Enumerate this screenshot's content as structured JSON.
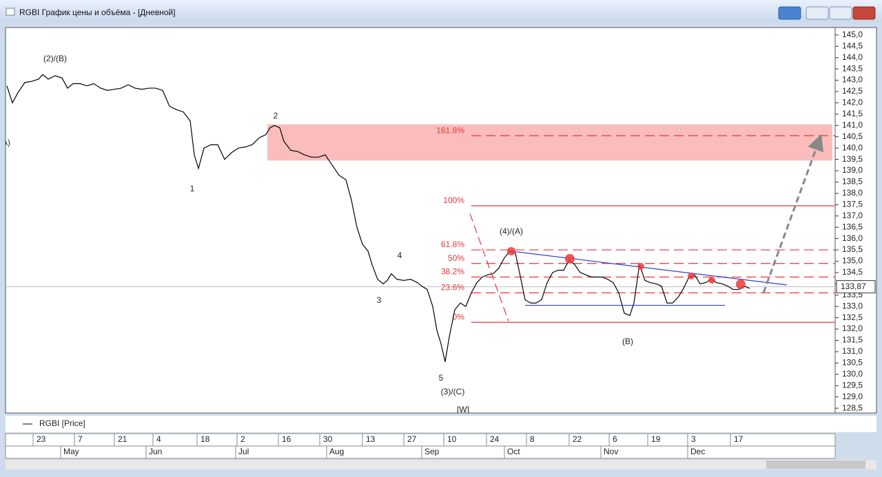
{
  "window": {
    "title": "RGBI График цены и объёма - [Дневной]"
  },
  "chart_data": {
    "type": "line",
    "legend": "RGBI [Price]",
    "series": [
      {
        "name": "RGBI",
        "color": "#000000",
        "x": [
          1,
          5,
          9,
          14,
          19,
          24,
          27,
          31,
          36,
          41,
          45,
          49,
          54,
          59,
          64,
          69,
          74,
          79,
          84,
          89,
          94,
          99,
          104,
          109,
          114,
          119,
          124,
          129,
          134,
          137,
          140,
          144,
          149,
          154,
          159,
          164,
          169,
          174,
          179,
          184,
          189,
          192,
          195,
          199,
          202,
          207,
          212,
          217,
          222,
          227,
          232,
          237,
          242,
          247,
          251,
          255,
          259,
          263,
          266,
          270,
          274,
          277,
          280,
          284,
          289,
          294,
          299,
          302,
          306,
          310,
          313,
          316,
          319,
          322,
          326,
          330,
          334,
          338,
          342,
          346,
          350,
          354,
          358,
          362,
          366,
          370,
          374,
          377,
          381,
          385,
          389,
          393,
          397,
          401,
          405,
          409,
          413,
          417,
          421,
          425,
          429,
          433,
          437,
          441,
          445,
          449,
          453,
          456,
          460,
          464,
          468,
          472,
          476,
          480,
          484,
          488,
          492,
          496,
          500,
          504,
          508,
          512,
          516,
          520,
          524,
          528,
          532,
          536,
          540
        ],
        "values": [
          142.75,
          142.0,
          142.45,
          142.9,
          142.95,
          143.05,
          143.25,
          143.05,
          143.2,
          143.1,
          142.65,
          142.85,
          142.85,
          142.75,
          142.85,
          142.65,
          142.55,
          142.6,
          142.65,
          142.8,
          142.65,
          142.6,
          142.65,
          142.65,
          142.55,
          141.85,
          141.7,
          141.6,
          141.2,
          139.7,
          139.1,
          140.0,
          140.15,
          140.15,
          139.5,
          139.8,
          140.0,
          140.05,
          140.15,
          140.45,
          140.6,
          140.9,
          141.0,
          140.9,
          140.3,
          139.9,
          139.85,
          139.7,
          139.6,
          139.6,
          139.7,
          139.25,
          138.8,
          138.6,
          137.7,
          136.5,
          135.75,
          135.45,
          134.85,
          134.2,
          134.0,
          134.15,
          134.45,
          134.2,
          134.15,
          134.2,
          134.05,
          133.9,
          133.75,
          133.0,
          131.95,
          131.35,
          130.55,
          131.65,
          132.85,
          133.15,
          133.0,
          133.6,
          134.05,
          134.3,
          134.4,
          134.45,
          134.7,
          135.15,
          135.45,
          135.35,
          134.2,
          133.3,
          133.15,
          133.15,
          133.3,
          134.05,
          134.5,
          134.6,
          134.6,
          135.05,
          134.85,
          134.5,
          134.4,
          134.3,
          134.3,
          134.3,
          134.2,
          134.05,
          133.6,
          132.7,
          132.6,
          133.15,
          134.85,
          134.15,
          134.05,
          134.0,
          133.9,
          133.15,
          133.15,
          133.4,
          133.8,
          134.3,
          134.4,
          134.0,
          134.05,
          134.2,
          134.05,
          134.0,
          133.9,
          133.75,
          133.75,
          133.9,
          133.8
        ]
      }
    ],
    "xlim": [
      0,
      602
    ],
    "ylim": [
      128.29,
      145.33
    ],
    "yticks": [
      {
        "value": 145,
        "label": "145,0"
      },
      {
        "value": 144.5,
        "label": "144,5"
      },
      {
        "value": 144,
        "label": "144,0"
      },
      {
        "value": 143.5,
        "label": "143,5"
      },
      {
        "value": 143,
        "label": "143,0"
      },
      {
        "value": 142.5,
        "label": "142,5"
      },
      {
        "value": 142,
        "label": "142,0"
      },
      {
        "value": 141.5,
        "label": "141,5"
      },
      {
        "value": 141,
        "label": "141,0"
      },
      {
        "value": 140.5,
        "label": "140,5"
      },
      {
        "value": 140,
        "label": "140,0"
      },
      {
        "value": 139.5,
        "label": "139,5"
      },
      {
        "value": 139,
        "label": "139,0"
      },
      {
        "value": 138.5,
        "label": "138,5"
      },
      {
        "value": 138,
        "label": "138,0"
      },
      {
        "value": 137.5,
        "label": "137,5"
      },
      {
        "value": 137,
        "label": "137,0"
      },
      {
        "value": 136.5,
        "label": "136,5"
      },
      {
        "value": 136,
        "label": "136,0"
      },
      {
        "value": 135.5,
        "label": "135,5"
      },
      {
        "value": 135,
        "label": "135,0"
      },
      {
        "value": 134.5,
        "label": "134,5"
      },
      {
        "value": 134,
        "label": "134,0"
      },
      {
        "value": 133.5,
        "label": "133,5"
      },
      {
        "value": 133,
        "label": "133,0"
      },
      {
        "value": 132.5,
        "label": "132,5"
      },
      {
        "value": 132,
        "label": "132,0"
      },
      {
        "value": 131.5,
        "label": "131,5"
      },
      {
        "value": 131,
        "label": "131,0"
      },
      {
        "value": 130.5,
        "label": "130,5"
      },
      {
        "value": 130,
        "label": "130,0"
      },
      {
        "value": 129.5,
        "label": "129,5"
      },
      {
        "value": 129,
        "label": "129,0"
      },
      {
        "value": 128.5,
        "label": "128,5"
      }
    ],
    "xticks": [
      {
        "value": 20,
        "label": "23"
      },
      {
        "value": 50,
        "label": "7"
      },
      {
        "value": 79,
        "label": "21"
      },
      {
        "value": 107,
        "label": "4"
      },
      {
        "value": 139,
        "label": "18"
      },
      {
        "value": 168,
        "label": "2"
      },
      {
        "value": 198,
        "label": "16"
      },
      {
        "value": 228,
        "label": "30"
      },
      {
        "value": 259,
        "label": "13"
      },
      {
        "value": 289,
        "label": "27"
      },
      {
        "value": 318,
        "label": "10"
      },
      {
        "value": 349,
        "label": "24"
      },
      {
        "value": 378,
        "label": "8"
      },
      {
        "value": 409,
        "label": "22"
      },
      {
        "value": 438,
        "label": "6"
      },
      {
        "value": 466,
        "label": "19"
      },
      {
        "value": 495,
        "label": "3"
      },
      {
        "value": 526,
        "label": "17"
      }
    ],
    "month_ticks": [
      {
        "value": 40,
        "label": "May"
      },
      {
        "value": 102,
        "label": "Jun"
      },
      {
        "value": 167,
        "label": "Jul"
      },
      {
        "value": 233,
        "label": "Aug"
      },
      {
        "value": 302,
        "label": "Sep"
      },
      {
        "value": 362,
        "label": "Oct"
      },
      {
        "value": 432,
        "label": "Nov"
      },
      {
        "value": 495,
        "label": "Dec"
      }
    ],
    "last_price": {
      "value": 133.87,
      "label": "133,87"
    },
    "zone": {
      "x": [
        190,
        600
      ],
      "y": [
        139.45,
        141.05
      ],
      "color": "#fbbcbc"
    },
    "levels_x_start": 338,
    "levels": [
      {
        "label": "161.8%",
        "value": 140.55,
        "style": "dashed"
      },
      {
        "label": "100%",
        "value": 137.45,
        "style": "solid"
      },
      {
        "label": "61.8%",
        "value": 135.5,
        "style": "dashed"
      },
      {
        "label": "50%",
        "value": 134.9,
        "style": "dashed"
      },
      {
        "label": "38.2%",
        "value": 134.3,
        "style": "dashed"
      },
      {
        "label": "23.6%",
        "value": 133.6,
        "style": "dashed"
      },
      {
        "label": "0%",
        "value": 132.3,
        "style": "solid"
      }
    ],
    "levels_color": "#e8353a",
    "lines": [
      {
        "x": [
          366,
          567
        ],
        "y": [
          135.45,
          133.95
        ],
        "color": "#3040d0",
        "style": "solid"
      },
      {
        "x": [
          377,
          522
        ],
        "y": [
          133.05,
          133.05
        ],
        "color": "#3040d0",
        "style": "solid"
      },
      {
        "x": [
          337,
          365
        ],
        "y": [
          137.1,
          132.35
        ],
        "color": "#e8353a",
        "style": "dashed"
      },
      {
        "x": [
          550,
          591
        ],
        "y": [
          133.6,
          140.45
        ],
        "color": "#888888",
        "style": "arrow"
      }
    ],
    "annotations": [
      "(2)/(B)",
      "2",
      "1",
      "3",
      "4",
      "5",
      "(3)/(C)",
      "(4)/(A)",
      "(B)",
      "[W]",
      "A)"
    ]
  }
}
